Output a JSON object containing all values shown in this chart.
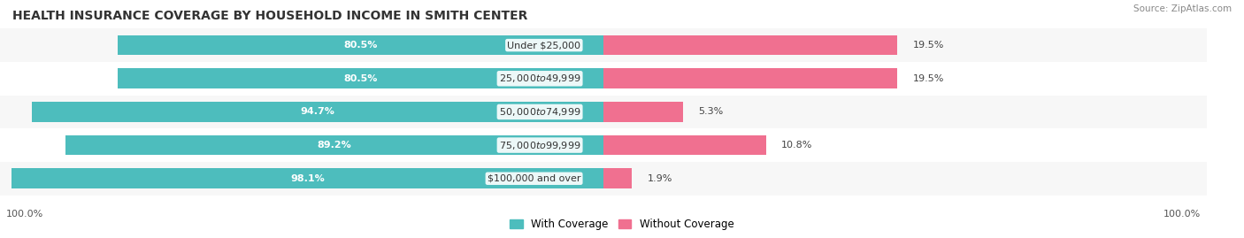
{
  "title": "HEALTH INSURANCE COVERAGE BY HOUSEHOLD INCOME IN SMITH CENTER",
  "source": "Source: ZipAtlas.com",
  "categories": [
    "Under $25,000",
    "$25,000 to $49,999",
    "$50,000 to $74,999",
    "$75,000 to $99,999",
    "$100,000 and over"
  ],
  "with_coverage": [
    80.5,
    80.5,
    94.7,
    89.2,
    98.1
  ],
  "without_coverage": [
    19.5,
    19.5,
    5.3,
    10.8,
    1.9
  ],
  "color_with": "#4dbdbd",
  "color_without": "#f07090",
  "row_bg_even": "#f7f7f7",
  "row_bg_odd": "#ffffff",
  "title_fontsize": 10,
  "label_fontsize": 8,
  "tick_fontsize": 8,
  "legend_fontsize": 8.5,
  "bar_height": 0.6,
  "legend_labels": [
    "With Coverage",
    "Without Coverage"
  ]
}
